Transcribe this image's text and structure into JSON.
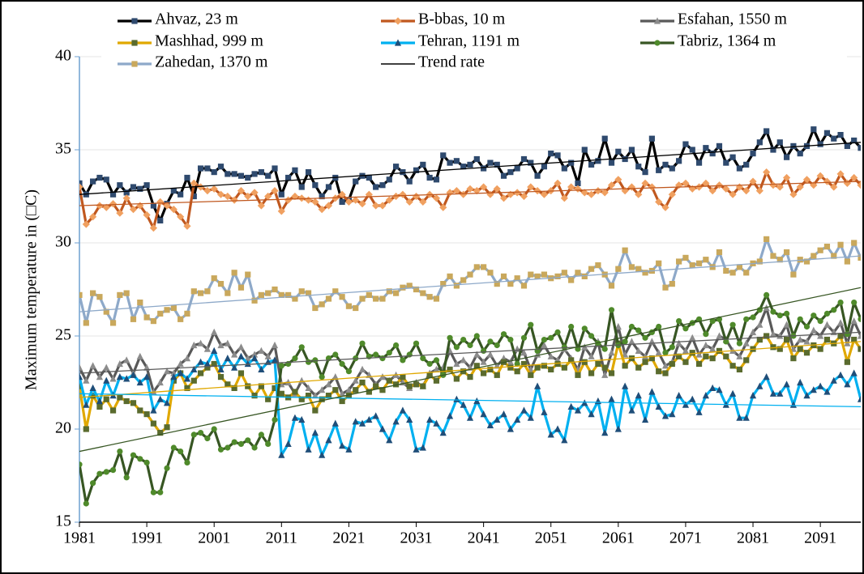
{
  "chart_data": {
    "type": "line",
    "y_label": "Maximum temperature in (□C)",
    "xlim": [
      1981,
      2097
    ],
    "xticks": [
      1981,
      1991,
      2001,
      2011,
      2021,
      2031,
      2041,
      2051,
      2061,
      2071,
      2081,
      2091
    ],
    "ylim": [
      15,
      40
    ],
    "yticks": [
      15,
      20,
      25,
      30,
      35,
      40
    ],
    "grid": true,
    "x_start": 1981,
    "trend_label": "Trend rate",
    "trend_color": "#000000",
    "series": [
      {
        "name": "Ahvaz, 23 m",
        "color": "#000000",
        "marker": "square",
        "marker_color": "#2f4a6e",
        "trend": [
          32.6,
          35.4
        ],
        "values": [
          33.2,
          32.6,
          33.3,
          33.5,
          33.4,
          32.6,
          33.1,
          32.7,
          33.0,
          32.9,
          33.1,
          32.0,
          31.2,
          32.1,
          32.8,
          32.6,
          33.5,
          32.5,
          34.0,
          34.0,
          33.8,
          34.1,
          33.7,
          33.7,
          33.6,
          33.5,
          33.7,
          33.8,
          33.6,
          34.0,
          32.6,
          33.5,
          33.9,
          33.0,
          33.8,
          33.1,
          32.5,
          33.0,
          33.5,
          32.2,
          32.3,
          33.3,
          33.6,
          33.5,
          33.0,
          33.1,
          33.4,
          34.1,
          33.8,
          33.3,
          33.9,
          34.2,
          33.5,
          33.4,
          34.7,
          34.3,
          34.4,
          34.1,
          34.2,
          34.5,
          34.0,
          34.3,
          34.2,
          33.6,
          33.8,
          34.0,
          34.5,
          34.3,
          33.6,
          34.1,
          34.8,
          34.7,
          34.0,
          34.3,
          33.2,
          35.0,
          34.2,
          34.4,
          35.6,
          34.3,
          34.9,
          34.5,
          35.0,
          34.1,
          33.8,
          35.6,
          33.9,
          34.2,
          34.0,
          34.4,
          35.3,
          35.0,
          34.3,
          35.1,
          34.8,
          35.2,
          34.3,
          34.6,
          34.0,
          34.2,
          34.8,
          35.4,
          36.0,
          35.0,
          35.4,
          34.6,
          35.2,
          34.8,
          35.2,
          36.1,
          35.3,
          35.9,
          35.6,
          35.8,
          35.2,
          35.5,
          35.1
        ]
      },
      {
        "name": "B-bbas, 10 m",
        "color": "#c0581f",
        "marker": "diamond",
        "marker_color": "#f0a060",
        "trend": [
          32.0,
          33.3
        ],
        "values": [
          33.0,
          31.0,
          31.4,
          32.0,
          31.9,
          32.1,
          31.6,
          32.4,
          31.8,
          32.0,
          31.5,
          30.8,
          32.2,
          32.0,
          31.8,
          31.4,
          30.9,
          33.2,
          33.0,
          32.8,
          32.9,
          32.6,
          32.5,
          32.3,
          32.8,
          32.5,
          32.7,
          32.0,
          32.5,
          32.8,
          31.7,
          32.3,
          32.5,
          32.4,
          32.3,
          32.2,
          31.8,
          32.0,
          32.4,
          32.6,
          32.2,
          32.3,
          32.1,
          32.6,
          32.0,
          32.0,
          32.3,
          32.5,
          32.6,
          32.2,
          32.5,
          32.2,
          32.6,
          32.4,
          31.9,
          32.7,
          32.8,
          32.6,
          32.9,
          32.8,
          33.0,
          32.6,
          32.9,
          32.4,
          32.6,
          32.7,
          32.5,
          33.0,
          32.8,
          32.6,
          32.8,
          33.2,
          32.4,
          33.0,
          32.9,
          32.7,
          32.6,
          32.8,
          32.7,
          33.1,
          33.4,
          32.8,
          33.0,
          32.6,
          33.2,
          33.0,
          32.2,
          31.9,
          32.6,
          33.1,
          33.2,
          32.9,
          33.0,
          33.2,
          32.8,
          33.1,
          32.9,
          32.6,
          33.0,
          32.8,
          33.3,
          32.8,
          33.8,
          33.1,
          33.0,
          33.5,
          32.6,
          33.0,
          33.4,
          33.1,
          33.6,
          33.3,
          33.0,
          33.7,
          33.2,
          33.5,
          33.1
        ]
      },
      {
        "name": "Esfahan, 1550 m",
        "color": "#595959",
        "marker": "triangle",
        "marker_color": "#8c8c8c",
        "trend": [
          23.0,
          25.2
        ],
        "values": [
          23.3,
          22.6,
          23.4,
          22.8,
          23.3,
          22.7,
          23.5,
          23.7,
          23.0,
          23.9,
          23.3,
          22.0,
          22.5,
          23.1,
          23.0,
          23.5,
          23.8,
          24.5,
          24.6,
          24.3,
          25.2,
          24.5,
          24.6,
          24.0,
          24.4,
          23.8,
          24.0,
          24.2,
          23.9,
          24.5,
          22.4,
          22.5,
          21.9,
          22.6,
          22.2,
          21.8,
          22.1,
          22.4,
          22.8,
          21.9,
          22.1,
          22.6,
          23.2,
          22.9,
          22.4,
          22.8,
          22.6,
          22.9,
          22.5,
          22.2,
          22.5,
          22.3,
          23.0,
          23.2,
          23.3,
          24.2,
          23.5,
          23.7,
          23.3,
          24.0,
          23.6,
          24.0,
          23.4,
          23.8,
          23.6,
          24.3,
          24.1,
          23.2,
          24.0,
          24.5,
          23.9,
          23.7,
          24.3,
          23.8,
          23.2,
          24.4,
          23.9,
          24.7,
          22.9,
          24.1,
          25.5,
          24.0,
          24.7,
          24.2,
          23.9,
          24.7,
          24.1,
          23.4,
          23.6,
          24.6,
          24.2,
          24.9,
          24.0,
          24.5,
          24.3,
          25.0,
          24.8,
          24.2,
          23.9,
          24.6,
          25.2,
          25.6,
          26.5,
          25.1,
          25.0,
          25.6,
          24.3,
          24.8,
          24.7,
          25.3,
          25.0,
          25.6,
          25.2,
          25.7,
          24.6,
          25.8,
          25.0
        ]
      },
      {
        "name": "Mashhad, 999 m",
        "color": "#e0a800",
        "marker": "square",
        "marker_color": "#5a6b2e",
        "trend": [
          21.7,
          24.7
        ],
        "values": [
          22.3,
          20.0,
          21.8,
          21.2,
          21.6,
          21.0,
          21.7,
          21.5,
          21.4,
          21.0,
          20.8,
          20.3,
          19.8,
          20.1,
          22.6,
          23.0,
          22.2,
          22.6,
          23.0,
          23.3,
          23.5,
          22.8,
          22.4,
          22.2,
          23.0,
          22.3,
          21.8,
          22.3,
          21.6,
          22.2,
          21.9,
          21.7,
          22.0,
          21.6,
          21.8,
          21.0,
          21.6,
          21.8,
          22.1,
          21.5,
          21.8,
          22.1,
          22.5,
          22.0,
          22.3,
          22.1,
          22.6,
          22.4,
          22.8,
          22.3,
          22.4,
          22.3,
          22.9,
          22.6,
          23.0,
          23.2,
          22.7,
          23.1,
          22.8,
          23.4,
          23.0,
          23.2,
          22.9,
          23.6,
          23.3,
          23.1,
          23.5,
          22.9,
          23.3,
          23.4,
          23.2,
          23.5,
          23.3,
          23.7,
          22.9,
          23.6,
          23.0,
          23.5,
          23.3,
          23.0,
          24.6,
          23.4,
          23.8,
          23.3,
          23.6,
          23.8,
          23.1,
          23.0,
          23.5,
          23.9,
          23.6,
          24.1,
          23.5,
          23.9,
          23.8,
          24.2,
          23.9,
          23.4,
          23.2,
          23.7,
          24.3,
          24.8,
          25.0,
          24.4,
          24.3,
          24.8,
          23.8,
          24.3,
          24.1,
          24.5,
          24.3,
          24.8,
          24.6,
          25.0,
          23.6,
          24.8,
          24.3
        ]
      },
      {
        "name": "Tehran, 1191 m",
        "color": "#00b0f0",
        "marker": "triangle",
        "marker_color": "#1f4e79",
        "trend": [
          21.9,
          21.2
        ],
        "values": [
          22.8,
          21.3,
          22.2,
          21.5,
          22.6,
          21.8,
          22.8,
          22.7,
          22.9,
          22.5,
          22.8,
          21.0,
          21.6,
          21.4,
          22.8,
          23.0,
          22.7,
          23.2,
          23.6,
          23.5,
          24.2,
          23.2,
          23.8,
          23.3,
          23.9,
          23.5,
          23.8,
          23.2,
          23.6,
          23.7,
          18.6,
          19.2,
          20.6,
          20.5,
          18.9,
          19.8,
          18.6,
          19.4,
          20.3,
          19.1,
          18.9,
          20.4,
          20.3,
          20.5,
          20.7,
          20.0,
          19.4,
          20.4,
          21.0,
          20.5,
          18.9,
          19.0,
          20.5,
          20.3,
          19.8,
          20.7,
          21.6,
          21.3,
          20.6,
          21.5,
          20.8,
          20.2,
          20.5,
          20.8,
          20.0,
          20.5,
          21.0,
          20.6,
          22.3,
          20.9,
          19.7,
          20.0,
          19.4,
          21.2,
          21.0,
          21.4,
          20.8,
          21.5,
          19.8,
          21.6,
          20.0,
          22.3,
          21.0,
          21.8,
          20.5,
          22.0,
          21.2,
          20.7,
          20.8,
          21.8,
          21.3,
          21.6,
          20.9,
          21.8,
          22.2,
          22.1,
          21.3,
          21.9,
          20.6,
          20.6,
          21.8,
          22.3,
          22.8,
          21.9,
          21.9,
          22.4,
          21.3,
          22.5,
          21.8,
          22.1,
          22.3,
          22.0,
          22.6,
          22.9,
          22.4,
          23.0,
          21.6
        ]
      },
      {
        "name": "Tabriz, 1364 m",
        "color": "#375623",
        "marker": "circle",
        "marker_color": "#4f8a2b",
        "trend": [
          18.8,
          27.6
        ],
        "values": [
          18.1,
          16.0,
          17.1,
          17.6,
          17.7,
          17.8,
          18.8,
          17.4,
          18.6,
          18.4,
          18.2,
          16.6,
          16.6,
          17.9,
          19.0,
          18.8,
          18.2,
          19.7,
          19.8,
          19.5,
          20.0,
          18.9,
          19.0,
          19.3,
          19.2,
          19.4,
          19.0,
          19.7,
          19.2,
          20.5,
          23.4,
          23.5,
          23.8,
          24.4,
          23.6,
          23.7,
          22.8,
          23.8,
          24.0,
          23.5,
          23.1,
          23.8,
          24.6,
          23.9,
          24.0,
          23.8,
          24.1,
          24.5,
          23.7,
          24.0,
          24.6,
          23.8,
          23.5,
          23.7,
          22.9,
          24.9,
          24.4,
          24.8,
          24.5,
          25.0,
          24.2,
          24.7,
          24.5,
          25.1,
          24.8,
          23.5,
          24.9,
          25.6,
          24.2,
          24.8,
          24.9,
          25.2,
          24.4,
          25.5,
          24.3,
          25.4,
          25.0,
          24.6,
          24.3,
          26.4,
          24.5,
          24.7,
          25.5,
          25.3,
          24.9,
          25.2,
          25.5,
          24.1,
          24.4,
          25.8,
          25.4,
          25.7,
          25.9,
          25.1,
          25.8,
          25.9,
          24.7,
          25.6,
          24.6,
          25.9,
          26.0,
          26.4,
          27.2,
          26.3,
          26.1,
          26.2,
          25.0,
          25.9,
          25.5,
          26.1,
          25.8,
          26.2,
          26.4,
          26.8,
          25.1,
          26.8,
          25.9
        ]
      },
      {
        "name": "Zahedan, 1370 m",
        "color": "#8ea9c9",
        "marker": "square",
        "marker_color": "#c9a85c",
        "trend": [
          26.3,
          29.3
        ],
        "values": [
          27.2,
          25.7,
          27.3,
          27.1,
          26.3,
          25.7,
          27.2,
          27.3,
          25.9,
          26.8,
          26.0,
          25.8,
          26.2,
          26.4,
          26.5,
          25.9,
          26.2,
          27.4,
          27.3,
          27.4,
          28.1,
          27.8,
          27.3,
          28.4,
          27.6,
          28.3,
          26.9,
          27.2,
          27.3,
          27.5,
          27.2,
          27.2,
          27.0,
          27.4,
          27.3,
          26.5,
          26.7,
          27.0,
          27.4,
          27.1,
          26.6,
          26.5,
          27.0,
          27.2,
          27.0,
          27.0,
          27.4,
          27.3,
          27.6,
          27.7,
          27.5,
          27.3,
          27.1,
          27.0,
          27.8,
          28.2,
          27.7,
          28.0,
          28.3,
          28.7,
          28.7,
          28.4,
          27.8,
          28.2,
          27.8,
          28.1,
          27.7,
          28.3,
          28.2,
          28.3,
          28.1,
          28.2,
          28.4,
          28.0,
          28.4,
          28.2,
          28.6,
          28.8,
          28.3,
          27.7,
          28.6,
          29.6,
          28.7,
          28.6,
          28.4,
          28.5,
          28.9,
          27.6,
          27.8,
          29.0,
          29.2,
          28.8,
          28.9,
          29.1,
          28.7,
          29.5,
          28.5,
          28.4,
          28.7,
          28.4,
          28.9,
          29.0,
          30.2,
          29.3,
          29.1,
          29.5,
          28.3,
          29.1,
          29.0,
          29.3,
          29.6,
          29.8,
          29.3,
          29.9,
          29.0,
          30.0,
          29.2
        ]
      }
    ]
  }
}
